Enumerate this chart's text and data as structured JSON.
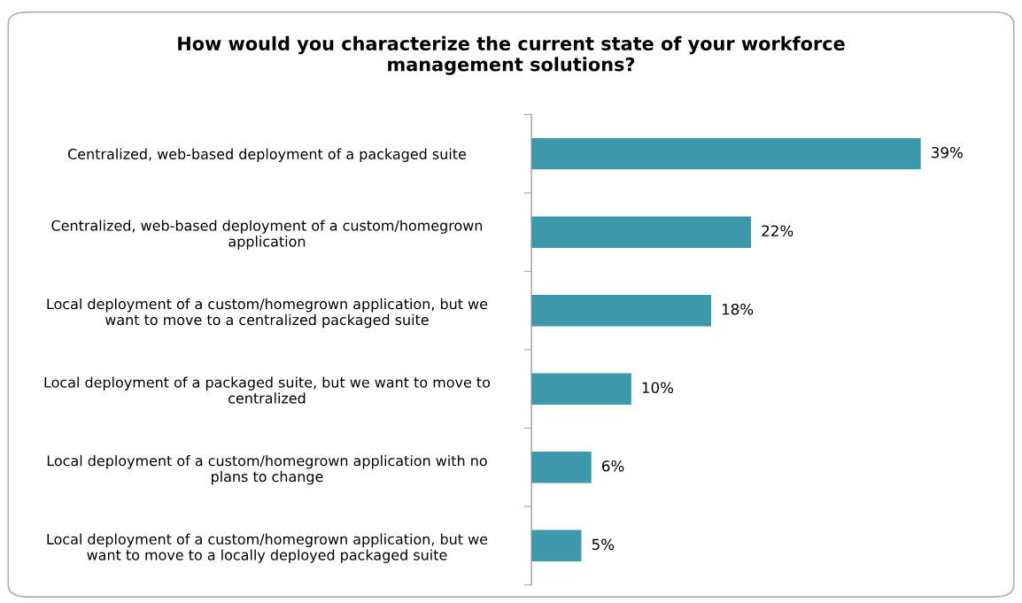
{
  "chart_data": {
    "type": "bar",
    "orientation": "horizontal",
    "title": "How would you characterize the current state of your workforce\nmanagement solutions?",
    "categories": [
      "Centralized, web-based deployment of a packaged suite",
      "Centralized, web-based deployment of a custom/homegrown\napplication",
      "Local deployment of a custom/homegrown application, but we\nwant to move to a centralized packaged suite",
      "Local deployment of a packaged suite, but we want to move to\ncentralized",
      "Local deployment of a custom/homegrown application with no\nplans to change",
      "Local deployment of a custom/homegrown application, but we\nwant to move to a locally deployed packaged suite"
    ],
    "values": [
      39,
      22,
      18,
      10,
      6,
      5
    ],
    "value_labels": [
      "39%",
      "22%",
      "18%",
      "10%",
      "6%",
      "5%"
    ],
    "color": "#3d98ac",
    "grid": false,
    "legend": false
  }
}
